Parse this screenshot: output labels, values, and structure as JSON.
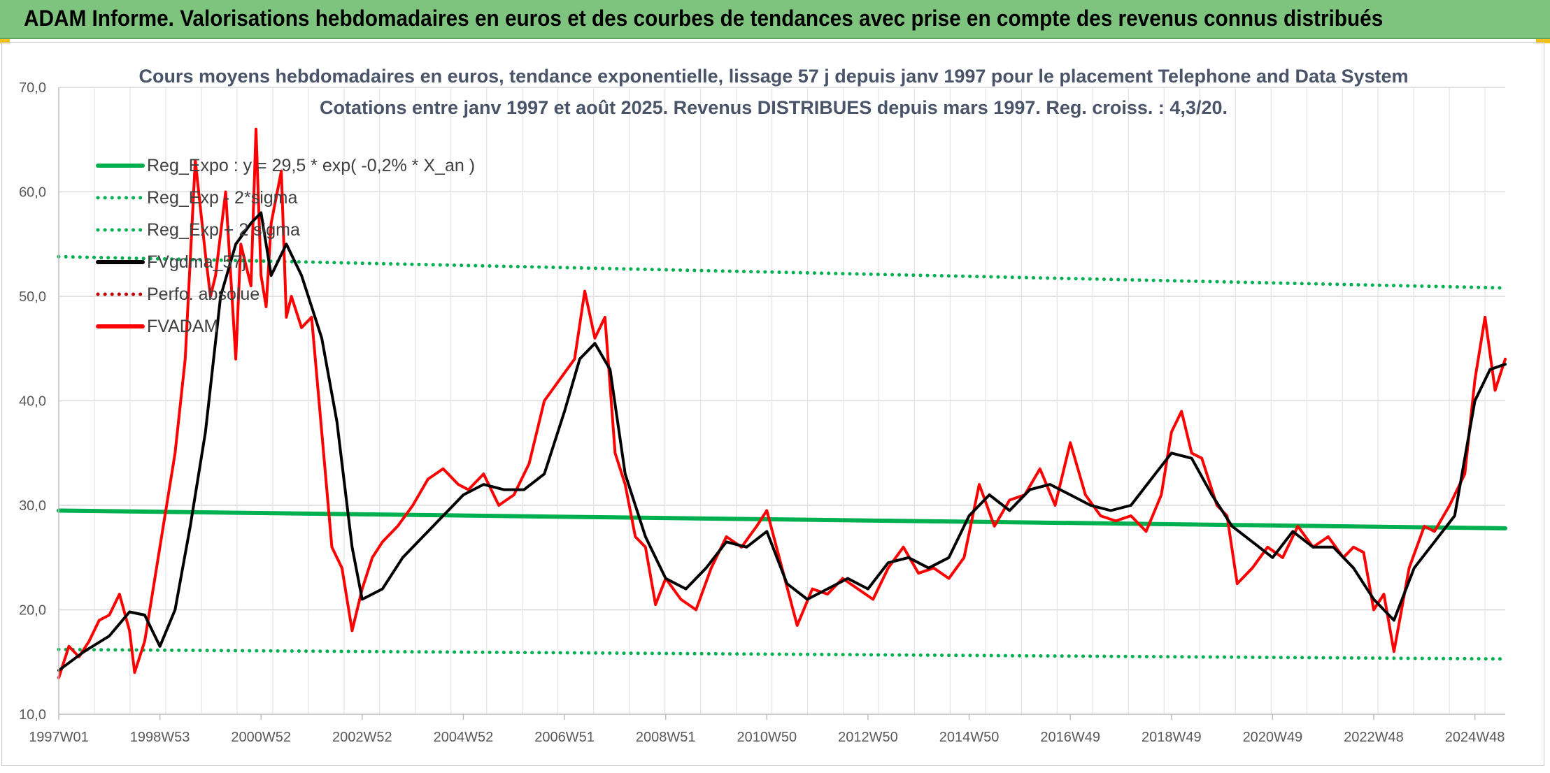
{
  "header": {
    "title": "ADAM Informe. Valorisations hebdomadaires en euros et des courbes de tendances avec prise en compte des revenus connus distribués"
  },
  "chart_data": {
    "type": "line",
    "title": "Cours moyens hebdomadaires en euros, tendance exponentielle, lissage 57 j depuis janv 1997 pour le placement Telephone and Data System",
    "subtitle": "Cotations entre janv 1997 et août 2025. Revenus DISTRIBUES depuis mars 1997. Reg. croiss. : 4,3/20.",
    "xlabel": "",
    "ylabel": "",
    "xlim": [
      1997.0,
      2025.6
    ],
    "ylim": [
      10,
      70
    ],
    "y_ticks": [
      "10,0",
      "20,0",
      "30,0",
      "40,0",
      "50,0",
      "60,0",
      "70,0"
    ],
    "x_ticks": [
      {
        "label": "1997W01",
        "x": 1997.0
      },
      {
        "label": "1998W53",
        "x": 1999.0
      },
      {
        "label": "2000W52",
        "x": 2001.0
      },
      {
        "label": "2002W52",
        "x": 2003.0
      },
      {
        "label": "2004W52",
        "x": 2005.0
      },
      {
        "label": "2006W51",
        "x": 2007.0
      },
      {
        "label": "2008W51",
        "x": 2009.0
      },
      {
        "label": "2010W50",
        "x": 2011.0
      },
      {
        "label": "2012W50",
        "x": 2013.0
      },
      {
        "label": "2014W50",
        "x": 2015.0
      },
      {
        "label": "2016W49",
        "x": 2017.0
      },
      {
        "label": "2018W49",
        "x": 2019.0
      },
      {
        "label": "2020W49",
        "x": 2021.0
      },
      {
        "label": "2022W48",
        "x": 2023.0
      },
      {
        "label": "2024W48",
        "x": 2025.0
      }
    ],
    "grid": true,
    "legend_position": "top-left",
    "series": [
      {
        "name": "Reg_Expo : y = 29,5 * exp( -0,2% *  X_an )",
        "color": "#00b050",
        "style": "solid",
        "x": [
          1997.0,
          2025.6
        ],
        "y": [
          29.5,
          27.8
        ]
      },
      {
        "name": "Reg_Exp - 2*sigma",
        "color": "#00b050",
        "style": "dotted",
        "x": [
          1997.0,
          2025.6
        ],
        "y": [
          16.2,
          15.3
        ]
      },
      {
        "name": "Reg_Exp + 2 sigma",
        "color": "#00b050",
        "style": "dotted",
        "x": [
          1997.0,
          2025.6
        ],
        "y": [
          53.8,
          50.8
        ]
      },
      {
        "name": "FVgdma_57j",
        "color": "#000000",
        "style": "solid",
        "x": [
          1997.0,
          1997.5,
          1998.0,
          1998.4,
          1998.7,
          1999.0,
          1999.3,
          1999.6,
          1999.9,
          2000.2,
          2000.5,
          2000.8,
          2001.0,
          2001.2,
          2001.5,
          2001.8,
          2002.2,
          2002.5,
          2002.8,
          2003.0,
          2003.4,
          2003.8,
          2004.2,
          2004.6,
          2005.0,
          2005.4,
          2005.8,
          2006.2,
          2006.6,
          2007.0,
          2007.3,
          2007.6,
          2007.9,
          2008.2,
          2008.6,
          2009.0,
          2009.4,
          2009.8,
          2010.2,
          2010.6,
          2011.0,
          2011.4,
          2011.8,
          2012.2,
          2012.6,
          2013.0,
          2013.4,
          2013.8,
          2014.2,
          2014.6,
          2015.0,
          2015.4,
          2015.8,
          2016.2,
          2016.6,
          2017.0,
          2017.4,
          2017.8,
          2018.2,
          2018.6,
          2019.0,
          2019.4,
          2019.8,
          2020.2,
          2020.6,
          2021.0,
          2021.4,
          2021.8,
          2022.2,
          2022.6,
          2023.0,
          2023.4,
          2023.8,
          2024.2,
          2024.6,
          2025.0,
          2025.3,
          2025.6
        ],
        "y": [
          14.2,
          16.0,
          17.5,
          19.8,
          19.5,
          16.5,
          20.0,
          28.0,
          37.0,
          50.0,
          55.0,
          57.0,
          58.0,
          52.0,
          55.0,
          52.0,
          46.0,
          38.0,
          26.0,
          21.0,
          22.0,
          25.0,
          27.0,
          29.0,
          31.0,
          32.0,
          31.5,
          31.5,
          33.0,
          39.0,
          44.0,
          45.5,
          43.0,
          33.0,
          27.0,
          23.0,
          22.0,
          24.0,
          26.5,
          26.0,
          27.5,
          22.5,
          21.0,
          22.0,
          23.0,
          22.0,
          24.5,
          25.0,
          24.0,
          25.0,
          29.0,
          31.0,
          29.5,
          31.5,
          32.0,
          31.0,
          30.0,
          29.5,
          30.0,
          32.5,
          35.0,
          34.5,
          31.0,
          28.0,
          26.5,
          25.0,
          27.5,
          26.0,
          26.0,
          24.0,
          21.0,
          19.0,
          24.0,
          26.5,
          29.0,
          40.0,
          43.0,
          43.5
        ]
      },
      {
        "name": "Perfo. absolue",
        "color": "#c00000",
        "style": "dotted",
        "x": [],
        "y": []
      },
      {
        "name": "FVADAM",
        "color": "#ff0000",
        "style": "solid",
        "x": [
          1997.0,
          1997.2,
          1997.4,
          1997.6,
          1997.8,
          1998.0,
          1998.2,
          1998.4,
          1998.5,
          1998.7,
          1998.9,
          1999.1,
          1999.3,
          1999.5,
          1999.7,
          1999.9,
          2000.0,
          2000.1,
          2000.3,
          2000.5,
          2000.6,
          2000.8,
          2000.9,
          2001.0,
          2001.1,
          2001.2,
          2001.4,
          2001.5,
          2001.6,
          2001.8,
          2002.0,
          2002.2,
          2002.4,
          2002.6,
          2002.8,
          2003.0,
          2003.2,
          2003.4,
          2003.7,
          2004.0,
          2004.3,
          2004.6,
          2004.9,
          2005.1,
          2005.4,
          2005.7,
          2006.0,
          2006.3,
          2006.6,
          2006.9,
          2007.2,
          2007.4,
          2007.6,
          2007.8,
          2008.0,
          2008.2,
          2008.4,
          2008.6,
          2008.8,
          2009.0,
          2009.3,
          2009.6,
          2009.9,
          2010.2,
          2010.5,
          2010.8,
          2011.0,
          2011.3,
          2011.6,
          2011.9,
          2012.2,
          2012.5,
          2012.8,
          2013.1,
          2013.4,
          2013.7,
          2014.0,
          2014.3,
          2014.6,
          2014.9,
          2015.2,
          2015.5,
          2015.8,
          2016.1,
          2016.4,
          2016.7,
          2017.0,
          2017.3,
          2017.6,
          2017.9,
          2018.2,
          2018.5,
          2018.8,
          2019.0,
          2019.2,
          2019.4,
          2019.6,
          2019.9,
          2020.1,
          2020.3,
          2020.6,
          2020.9,
          2021.2,
          2021.5,
          2021.8,
          2022.1,
          2022.4,
          2022.6,
          2022.8,
          2023.0,
          2023.2,
          2023.4,
          2023.7,
          2024.0,
          2024.2,
          2024.5,
          2024.8,
          2025.0,
          2025.2,
          2025.4,
          2025.6
        ],
        "y": [
          13.5,
          16.5,
          15.5,
          17.0,
          19.0,
          19.5,
          21.5,
          18.0,
          14.0,
          17.0,
          23.0,
          29.0,
          35.0,
          44.0,
          63.0,
          54.0,
          50.0,
          52.0,
          60.0,
          44.0,
          55.0,
          51.0,
          66.0,
          52.0,
          49.0,
          57.0,
          62.0,
          48.0,
          50.0,
          47.0,
          48.0,
          37.0,
          26.0,
          24.0,
          18.0,
          22.0,
          25.0,
          26.5,
          28.0,
          30.0,
          32.5,
          33.5,
          32.0,
          31.5,
          33.0,
          30.0,
          31.0,
          34.0,
          40.0,
          42.0,
          44.0,
          50.5,
          46.0,
          48.0,
          35.0,
          32.0,
          27.0,
          26.0,
          20.5,
          23.0,
          21.0,
          20.0,
          24.0,
          27.0,
          26.0,
          28.0,
          29.5,
          24.0,
          18.5,
          22.0,
          21.5,
          23.0,
          22.0,
          21.0,
          24.0,
          26.0,
          23.5,
          24.0,
          23.0,
          25.0,
          32.0,
          28.0,
          30.5,
          31.0,
          33.5,
          30.0,
          36.0,
          31.0,
          29.0,
          28.5,
          29.0,
          27.5,
          31.0,
          37.0,
          39.0,
          35.0,
          34.5,
          30.0,
          29.0,
          22.5,
          24.0,
          26.0,
          25.0,
          28.0,
          26.0,
          27.0,
          25.0,
          26.0,
          25.5,
          20.0,
          21.5,
          16.0,
          24.0,
          28.0,
          27.5,
          30.0,
          33.0,
          42.0,
          48.0,
          41.0,
          44.0
        ]
      }
    ]
  }
}
